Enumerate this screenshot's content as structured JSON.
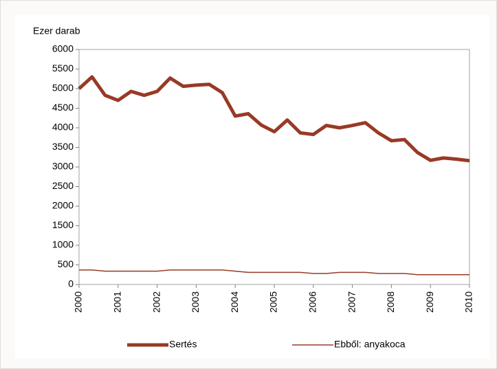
{
  "chart_data": {
    "type": "line",
    "y_label": "Ezer darab",
    "categories": [
      "2000",
      null,
      null,
      "2001",
      null,
      null,
      "2002",
      null,
      null,
      "2003",
      null,
      null,
      "2004",
      null,
      null,
      "2005",
      null,
      null,
      "2006",
      null,
      null,
      "2007",
      null,
      null,
      "2008",
      null,
      null,
      "2009",
      null,
      null,
      "2010"
    ],
    "series": [
      {
        "name": "Sertés",
        "color": "#983a26",
        "width": 5,
        "values": [
          5000,
          5300,
          4830,
          4700,
          4930,
          4830,
          4930,
          5270,
          5060,
          5090,
          5110,
          4900,
          4300,
          4360,
          4070,
          3900,
          4200,
          3870,
          3830,
          4060,
          4000,
          4060,
          4130,
          3870,
          3670,
          3700,
          3370,
          3170,
          3230,
          3200,
          3160
        ]
      },
      {
        "name": "Ebből: anyakoca",
        "color": "#983a26",
        "width": 1.5,
        "values": [
          370,
          370,
          340,
          340,
          340,
          340,
          340,
          370,
          370,
          370,
          370,
          370,
          340,
          310,
          310,
          310,
          310,
          310,
          280,
          280,
          310,
          310,
          310,
          280,
          280,
          280,
          250,
          250,
          250,
          250,
          250
        ]
      }
    ],
    "ylim": [
      0,
      6000
    ],
    "yticks": [
      0,
      500,
      1000,
      1500,
      2000,
      2500,
      3000,
      3500,
      4000,
      4500,
      5000,
      5500,
      6000
    ],
    "grid": false,
    "legend": "bottom"
  }
}
